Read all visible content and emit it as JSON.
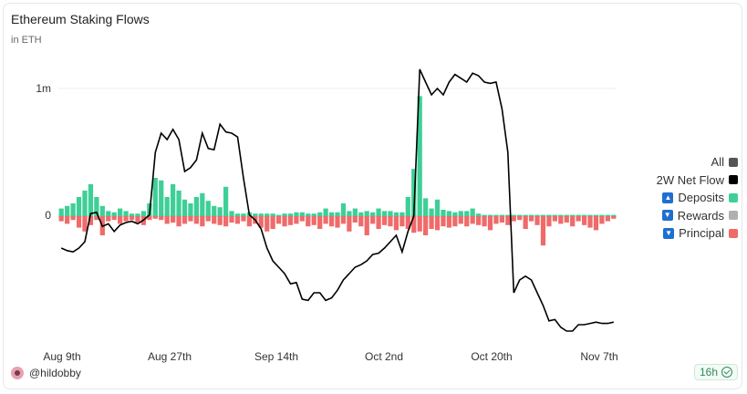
{
  "chart": {
    "title": "Ethereum Staking Flows",
    "subtitle": "in ETH"
  },
  "legend": {
    "all": "All",
    "net": "2W Net Flow",
    "deposits": "Deposits",
    "rewards": "Rewards",
    "principal": "Principal"
  },
  "colors": {
    "deposits": "#3ecf97",
    "rewards": "#b0b0b0",
    "principal": "#f06a6a",
    "net": "#000000",
    "all": "#555555"
  },
  "author": "@hildobby",
  "badge": "16h",
  "chart_data": {
    "type": "bar",
    "title": "Ethereum Staking Flows",
    "subtitle": "in ETH",
    "y_ticks": [
      "1m",
      "0"
    ],
    "x_ticks": [
      "Aug 9th",
      "Aug 27th",
      "Sep 14th",
      "Oct 2nd",
      "Oct 20th",
      "Nov 7th"
    ],
    "ylim": [
      -1000000,
      1150000
    ],
    "series": [
      {
        "name": "Deposits",
        "type": "bar",
        "values": [
          60000,
          80000,
          100000,
          150000,
          200000,
          250000,
          150000,
          80000,
          40000,
          30000,
          60000,
          40000,
          20000,
          20000,
          40000,
          100000,
          300000,
          280000,
          150000,
          250000,
          200000,
          130000,
          100000,
          150000,
          180000,
          120000,
          80000,
          70000,
          230000,
          40000,
          20000,
          20000,
          30000,
          20000,
          20000,
          20000,
          20000,
          10000,
          20000,
          20000,
          30000,
          30000,
          20000,
          20000,
          30000,
          60000,
          30000,
          30000,
          100000,
          40000,
          60000,
          30000,
          40000,
          30000,
          60000,
          40000,
          40000,
          30000,
          30000,
          150000,
          370000,
          940000,
          140000,
          60000,
          130000,
          50000,
          40000,
          30000,
          40000,
          40000,
          60000,
          20000,
          10000,
          10000,
          10000,
          10000,
          10000,
          10000,
          10000,
          10000,
          10000,
          10000,
          10000,
          10000,
          10000,
          10000,
          10000,
          10000,
          10000,
          10000,
          10000,
          10000,
          10000,
          10000,
          10000
        ]
      },
      {
        "name": "Principal",
        "type": "bar",
        "values": [
          -40000,
          -60000,
          -30000,
          -90000,
          -120000,
          -70000,
          -30000,
          -150000,
          -40000,
          -30000,
          -60000,
          -40000,
          -30000,
          -50000,
          -70000,
          -30000,
          -20000,
          -30000,
          -60000,
          -50000,
          -80000,
          -60000,
          -40000,
          -60000,
          -80000,
          -40000,
          -60000,
          -70000,
          -80000,
          -50000,
          -60000,
          -40000,
          -80000,
          -60000,
          -90000,
          -120000,
          -100000,
          -60000,
          -80000,
          -70000,
          -60000,
          -40000,
          -80000,
          -70000,
          -100000,
          -60000,
          -80000,
          -90000,
          -60000,
          -120000,
          -50000,
          -80000,
          -150000,
          -60000,
          -100000,
          -70000,
          -80000,
          -110000,
          -80000,
          -100000,
          -130000,
          -120000,
          -150000,
          -100000,
          -110000,
          -80000,
          -90000,
          -80000,
          -60000,
          -80000,
          -60000,
          -70000,
          -80000,
          -110000,
          -60000,
          -50000,
          -70000,
          -40000,
          -30000,
          -100000,
          -40000,
          -70000,
          -230000,
          -80000,
          -40000,
          -60000,
          -50000,
          -80000,
          -40000,
          -70000,
          -90000,
          -110000,
          -60000,
          -40000,
          -20000
        ]
      },
      {
        "name": "2W Net Flow",
        "type": "line",
        "values": [
          -250000,
          -270000,
          -280000,
          -250000,
          -200000,
          20000,
          30000,
          -80000,
          -60000,
          -120000,
          -70000,
          -50000,
          -40000,
          -60000,
          -30000,
          10000,
          500000,
          650000,
          600000,
          680000,
          600000,
          350000,
          380000,
          440000,
          650000,
          530000,
          520000,
          720000,
          660000,
          650000,
          620000,
          300000,
          10000,
          -30000,
          -100000,
          -250000,
          -350000,
          -400000,
          -450000,
          -530000,
          -520000,
          -650000,
          -660000,
          -600000,
          -600000,
          -660000,
          -640000,
          -580000,
          -500000,
          -450000,
          -400000,
          -380000,
          -350000,
          -300000,
          -290000,
          -250000,
          -200000,
          -150000,
          -280000,
          -120000,
          0,
          1150000,
          1050000,
          950000,
          1000000,
          950000,
          1050000,
          1110000,
          1080000,
          1050000,
          1120000,
          1100000,
          1050000,
          1040000,
          1050000,
          840000,
          500000,
          -600000,
          -500000,
          -470000,
          -500000,
          -600000,
          -700000,
          -820000,
          -810000,
          -870000,
          -900000,
          -900000,
          -850000,
          -850000,
          -840000,
          -830000,
          -840000,
          -840000,
          -830000
        ]
      }
    ]
  }
}
